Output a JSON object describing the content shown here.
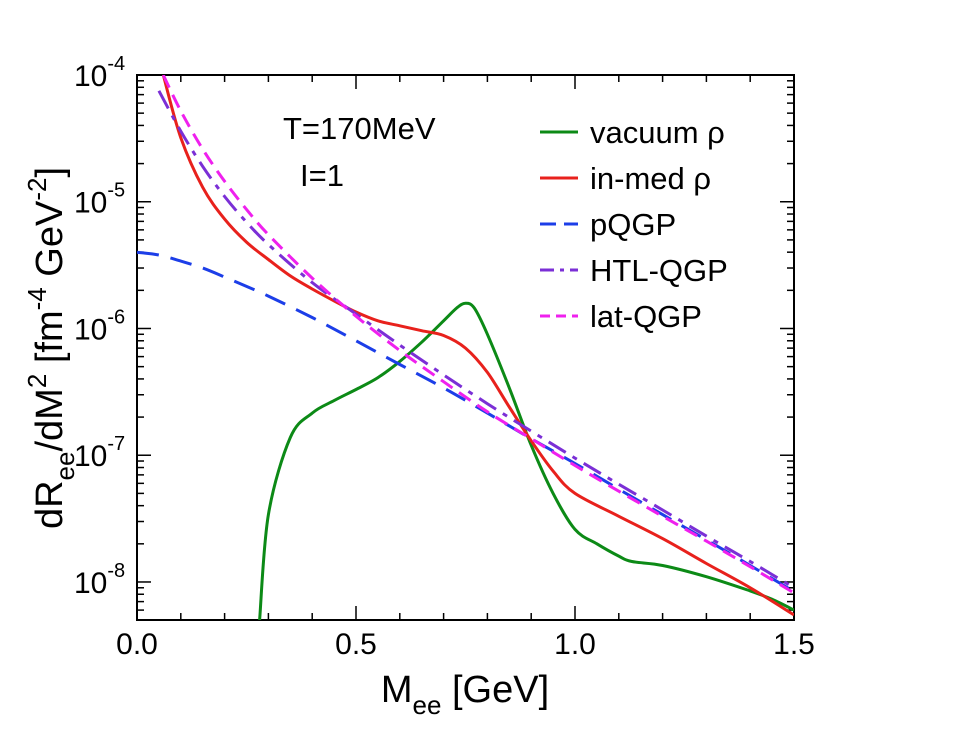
{
  "chart_data": {
    "type": "line",
    "title": "",
    "xlabel": {
      "main": "M",
      "sub": "ee",
      "unit": " [GeV]"
    },
    "ylabel": {
      "p1": "dR",
      "sub1": "ee",
      "p2": "/dM",
      "sup1": "2",
      "p3": " [fm",
      "sup2": "-4",
      "p4": " GeV",
      "sup3": "-2",
      "p5": "]"
    },
    "xlim": [
      0,
      1.5
    ],
    "ylim_log10": [
      -8.3,
      -4
    ],
    "x_ticks": [
      {
        "value": 0.0,
        "label": "0.0"
      },
      {
        "value": 0.5,
        "label": "0.5"
      },
      {
        "value": 1.0,
        "label": "1.0"
      },
      {
        "value": 1.5,
        "label": "1.5"
      }
    ],
    "y_ticks": [
      {
        "exp": -8,
        "base": "10",
        "sup": "-8"
      },
      {
        "exp": -7,
        "base": "10",
        "sup": "-7"
      },
      {
        "exp": -6,
        "base": "10",
        "sup": "-6"
      },
      {
        "exp": -5,
        "base": "10",
        "sup": "-5"
      },
      {
        "exp": -4,
        "base": "10",
        "sup": "-4"
      }
    ],
    "annotations": [
      "T=170MeV",
      "I=1"
    ],
    "legend_position": "top-right",
    "series": [
      {
        "name": "vacuum ρ",
        "color": "#0c8a16",
        "dash": "solid",
        "x": [
          0.28,
          0.3,
          0.35,
          0.4,
          0.45,
          0.5,
          0.55,
          0.6,
          0.65,
          0.7,
          0.73,
          0.75,
          0.77,
          0.8,
          0.85,
          0.9,
          0.95,
          1.0,
          1.05,
          1.1,
          1.13,
          1.2,
          1.3,
          1.4,
          1.45,
          1.5
        ],
        "y": [
          5e-09,
          3.4e-08,
          1.38e-07,
          2.15e-07,
          2.7e-07,
          3.3e-07,
          4.1e-07,
          5.5e-07,
          7.8e-07,
          1.15e-06,
          1.45e-06,
          1.58e-06,
          1.45e-06,
          9e-07,
          3.4e-07,
          1.2e-07,
          5e-08,
          2.6e-08,
          2e-08,
          1.6e-08,
          1.45e-08,
          1.35e-08,
          1.1e-08,
          8.5e-09,
          7.3e-09,
          6e-09
        ]
      },
      {
        "name": "in-med ρ",
        "color": "#e8211c",
        "dash": "solid",
        "x": [
          0.06,
          0.1,
          0.15,
          0.2,
          0.25,
          0.3,
          0.35,
          0.4,
          0.45,
          0.5,
          0.55,
          0.6,
          0.65,
          0.7,
          0.75,
          0.8,
          0.85,
          0.9,
          0.95,
          1.0,
          1.1,
          1.2,
          1.3,
          1.4,
          1.5
        ],
        "y": [
          0.0001,
          3.2e-05,
          1.3e-05,
          7.3e-06,
          4.8e-06,
          3.5e-06,
          2.6e-06,
          2.05e-06,
          1.65e-06,
          1.35e-06,
          1.15e-06,
          1.05e-06,
          9.6e-07,
          8.8e-07,
          7e-07,
          4.5e-07,
          2.4e-07,
          1.3e-07,
          7.5e-08,
          5e-08,
          3.3e-08,
          2.2e-08,
          1.4e-08,
          9e-09,
          5.5e-09
        ]
      },
      {
        "name": "pQGP",
        "color": "#1c3ee8",
        "dash": "longdash",
        "x": [
          0.0,
          0.05,
          0.1,
          0.15,
          0.2,
          0.25,
          0.3,
          0.4,
          0.5,
          0.6,
          0.7,
          0.8,
          0.9,
          1.0,
          1.1,
          1.2,
          1.3,
          1.4,
          1.5
        ],
        "y": [
          4e-06,
          3.8e-06,
          3.4e-06,
          3e-06,
          2.55e-06,
          2.15e-06,
          1.8e-06,
          1.22e-06,
          8e-07,
          5.2e-07,
          3.4e-07,
          2.15e-07,
          1.35e-07,
          8.6e-08,
          5.4e-08,
          3.4e-08,
          2.15e-08,
          1.35e-08,
          8.4e-09
        ]
      },
      {
        "name": "HTL-QGP",
        "color": "#7b2fd6",
        "dash": "dashdot",
        "x": [
          0.05,
          0.1,
          0.15,
          0.2,
          0.25,
          0.3,
          0.4,
          0.5,
          0.6,
          0.7,
          0.8,
          0.9,
          1.0,
          1.1,
          1.2,
          1.3,
          1.4,
          1.5
        ],
        "y": [
          7.5e-05,
          3.6e-05,
          1.9e-05,
          1.1e-05,
          6.9e-06,
          4.6e-06,
          2.3e-06,
          1.3e-06,
          7.4e-07,
          4.3e-07,
          2.55e-07,
          1.55e-07,
          9.5e-08,
          5.9e-08,
          3.7e-08,
          2.3e-08,
          1.45e-08,
          9e-09
        ]
      },
      {
        "name": "lat-QGP",
        "color": "#ef20ee",
        "dash": "dash",
        "x": [
          0.06,
          0.1,
          0.15,
          0.2,
          0.25,
          0.3,
          0.4,
          0.5,
          0.6,
          0.7,
          0.8,
          0.9,
          1.0,
          1.1,
          1.2,
          1.3,
          1.4,
          1.5
        ],
        "y": [
          0.0001,
          5.2e-05,
          2.6e-05,
          1.45e-05,
          8.7e-06,
          5.5e-06,
          2.5e-06,
          1.25e-06,
          6.7e-07,
          3.8e-07,
          2.2e-07,
          1.35e-07,
          8.3e-08,
          5.2e-08,
          3.3e-08,
          2.1e-08,
          1.32e-08,
          8.2e-09
        ]
      }
    ]
  }
}
